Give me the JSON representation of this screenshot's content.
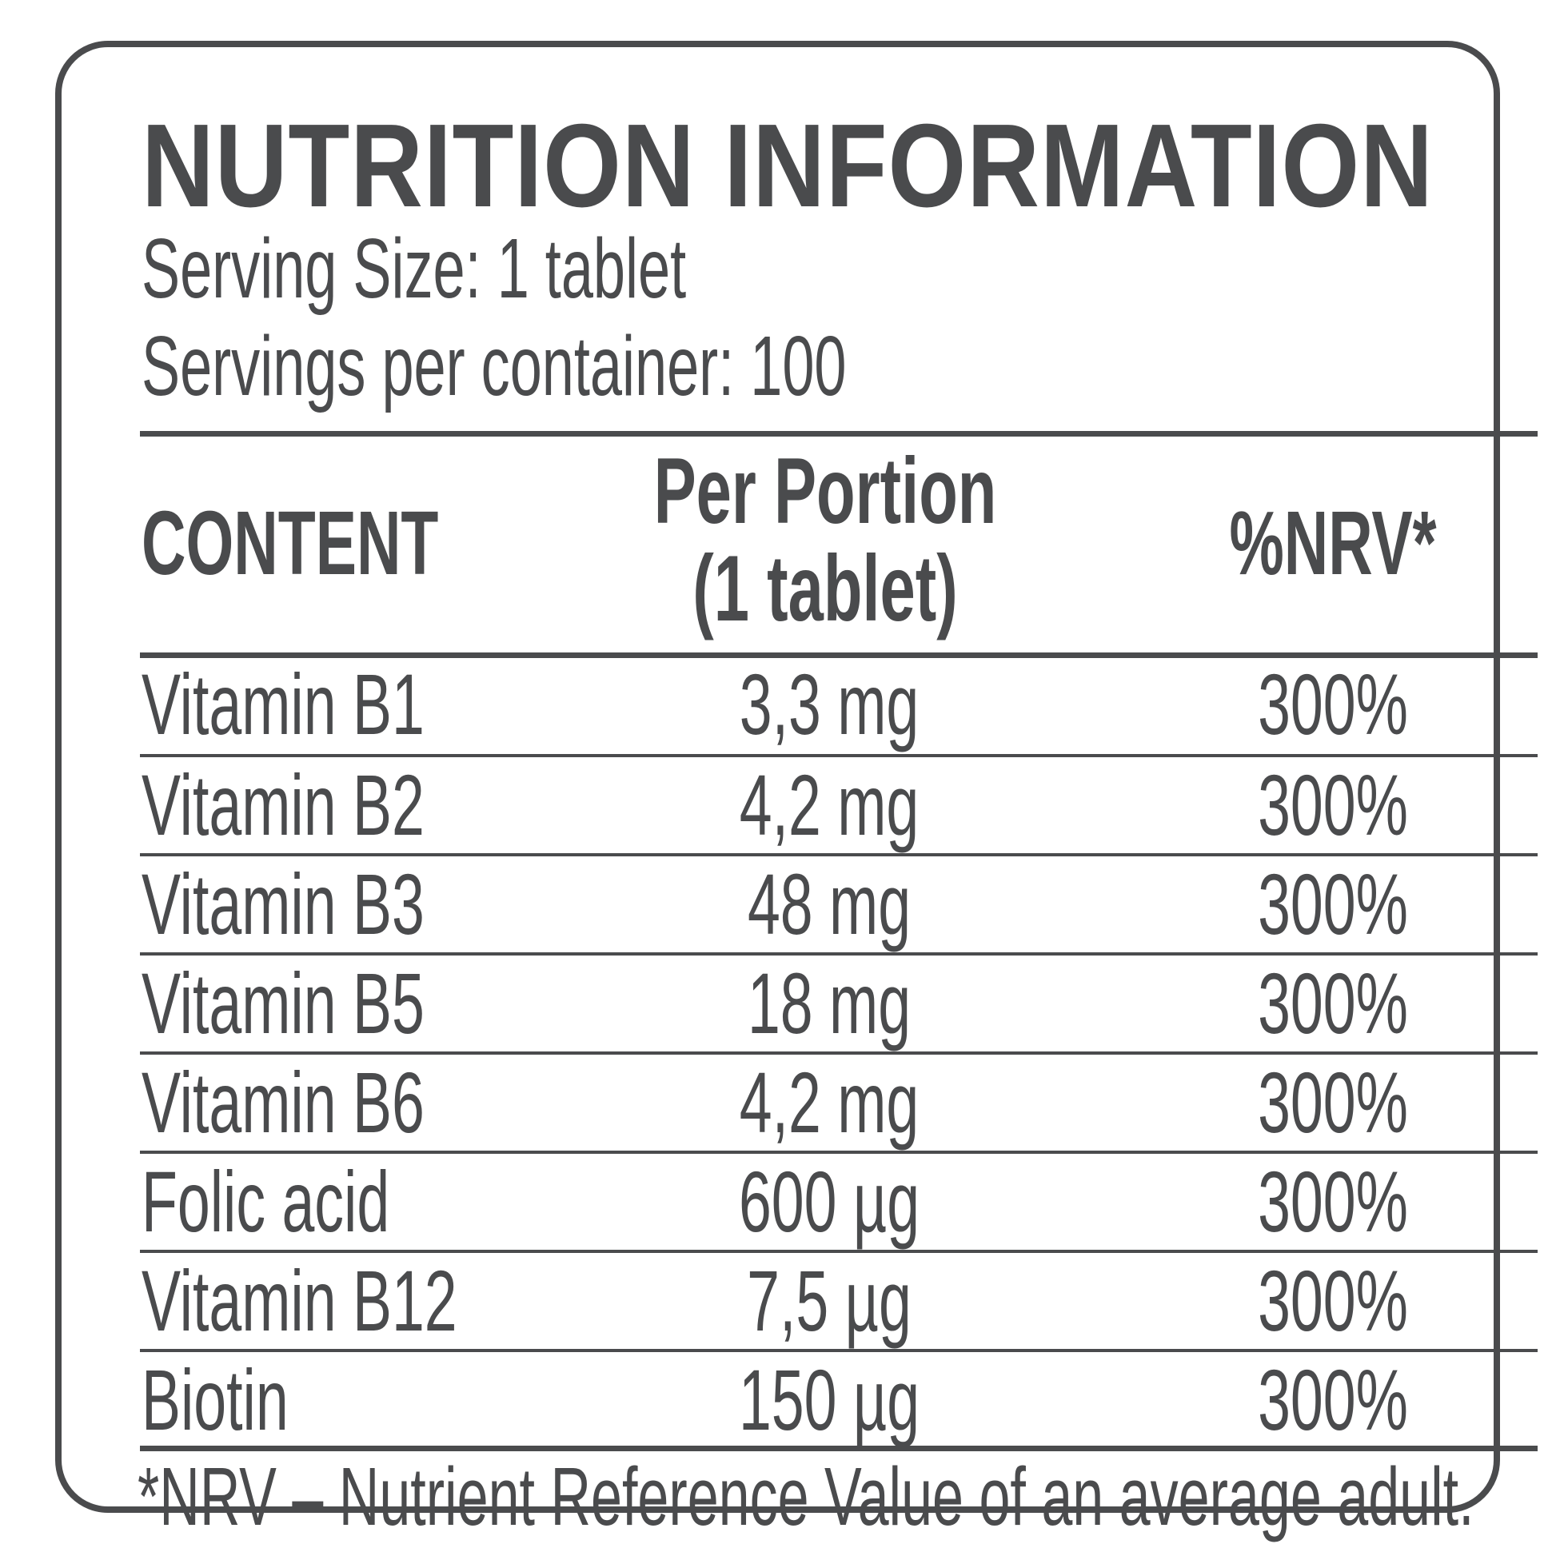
{
  "label": {
    "title": "NUTRITION INFORMATION",
    "serving_size_line": "Serving Size: 1 tablet",
    "servings_per_container_line": "Servings per container: 100",
    "table": {
      "columns": {
        "content": "CONTENT",
        "per_portion_line1": "Per Portion",
        "per_portion_line2": "(1 tablet)",
        "nrv": "%NRV*"
      },
      "rows": [
        {
          "name": "Vitamin B1",
          "amount": "3,3 mg",
          "nrv": "300%"
        },
        {
          "name": "Vitamin B2",
          "amount": "4,2 mg",
          "nrv": "300%"
        },
        {
          "name": "Vitamin B3",
          "amount": "48 mg",
          "nrv": "300%"
        },
        {
          "name": "Vitamin B5",
          "amount": "18 mg",
          "nrv": "300%"
        },
        {
          "name": "Vitamin B6",
          "amount": "4,2 mg",
          "nrv": "300%"
        },
        {
          "name": "Folic acid",
          "amount": "600 µg",
          "nrv": "300%"
        },
        {
          "name": "Vitamin B12",
          "amount": "7,5 µg",
          "nrv": "300%"
        },
        {
          "name": "Biotin",
          "amount": "150 µg",
          "nrv": "300%"
        }
      ]
    },
    "footnote": "*NRV – Nutrient Reference Value of an average adult.",
    "colors": {
      "ink": "#4a4b4d",
      "background": "#ffffff"
    }
  }
}
